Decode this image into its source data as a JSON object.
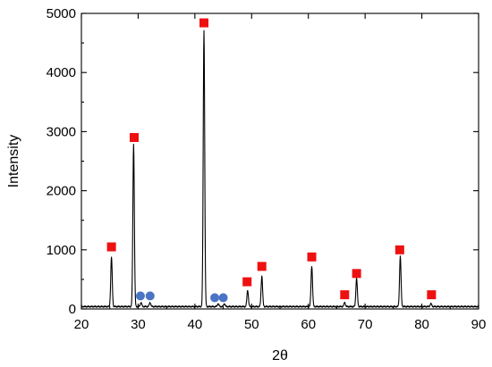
{
  "chart_data": {
    "type": "line",
    "title": "",
    "xlabel": "2θ",
    "ylabel": "Intensity",
    "xlim": [
      20,
      90
    ],
    "ylim": [
      0,
      5000
    ],
    "x_ticks": [
      20,
      30,
      40,
      50,
      60,
      70,
      80,
      90
    ],
    "y_ticks": [
      0,
      1000,
      2000,
      3000,
      4000,
      5000
    ],
    "x_tick_labels": [
      "20",
      "30",
      "40",
      "50",
      "60",
      "70",
      "80",
      "90"
    ],
    "y_tick_labels": [
      "0",
      "1000",
      "2000",
      "3000",
      "4000",
      "5000"
    ],
    "grid": false,
    "legend": "none",
    "series": [
      {
        "type": "line",
        "color": "#000000",
        "baseline": 40,
        "peaks": [
          {
            "x": 25.3,
            "y": 880
          },
          {
            "x": 29.2,
            "y": 2800
          },
          {
            "x": 30.5,
            "y": 110
          },
          {
            "x": 32.1,
            "y": 110
          },
          {
            "x": 41.6,
            "y": 4720
          },
          {
            "x": 44.1,
            "y": 90
          },
          {
            "x": 45.2,
            "y": 90
          },
          {
            "x": 49.3,
            "y": 320
          },
          {
            "x": 51.8,
            "y": 560
          },
          {
            "x": 60.6,
            "y": 730
          },
          {
            "x": 66.4,
            "y": 110
          },
          {
            "x": 68.5,
            "y": 520
          },
          {
            "x": 76.2,
            "y": 890
          },
          {
            "x": 81.6,
            "y": 90
          }
        ]
      }
    ],
    "markers": [
      {
        "shape": "square",
        "color": "#ee1111",
        "points": [
          {
            "x": 25.3,
            "y": 1050
          },
          {
            "x": 29.3,
            "y": 2900
          },
          {
            "x": 41.6,
            "y": 4840
          },
          {
            "x": 49.2,
            "y": 460
          },
          {
            "x": 51.8,
            "y": 720
          },
          {
            "x": 60.6,
            "y": 880
          },
          {
            "x": 66.4,
            "y": 240
          },
          {
            "x": 68.5,
            "y": 600
          },
          {
            "x": 76.1,
            "y": 1000
          },
          {
            "x": 81.7,
            "y": 240
          }
        ]
      },
      {
        "shape": "circle",
        "color": "#4a73c4",
        "points": [
          {
            "x": 30.4,
            "y": 220
          },
          {
            "x": 32.1,
            "y": 220
          },
          {
            "x": 43.5,
            "y": 190
          },
          {
            "x": 45.0,
            "y": 190
          }
        ]
      }
    ]
  }
}
